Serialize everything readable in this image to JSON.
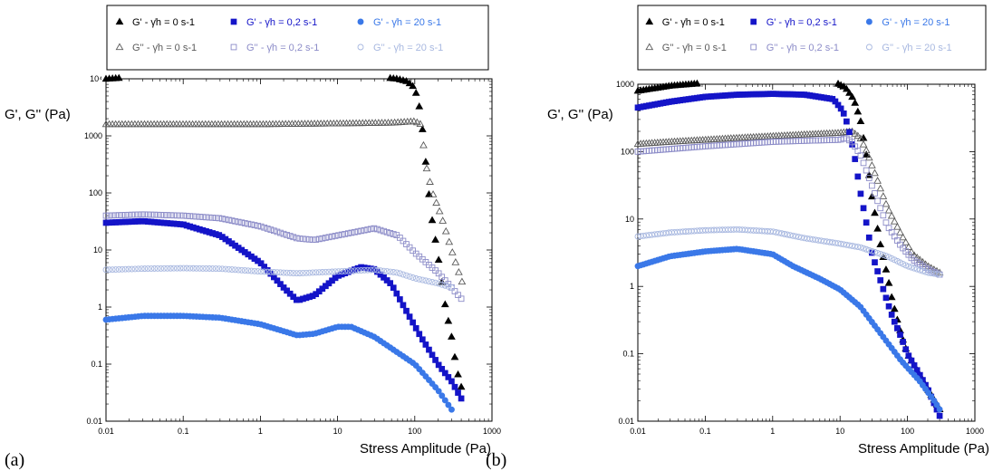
{
  "colors": {
    "black": "#000000",
    "navy": "#1414c8",
    "lightblue": "#3a78e8",
    "open_black": "#5a5a5a",
    "open_navy": "#8c8cc8",
    "open_light": "#a8b8e0"
  },
  "panels": [
    "(a)",
    "(b)"
  ],
  "chart_data": [
    {
      "type": "scatter",
      "panel_label": "(a)",
      "xlabel": "Stress Amplitude (Pa)",
      "ylabel": "G', G'' (Pa)",
      "xscale": "log",
      "yscale": "log",
      "xlim": [
        0.01,
        1000
      ],
      "ylim": [
        0.01,
        10000
      ],
      "xticks": [
        "0.01",
        "0.1",
        "1",
        "10",
        "100",
        "1000"
      ],
      "yticks": [
        "0.01",
        "0.1",
        "1",
        "10",
        "100",
        "1000",
        "10⁴"
      ],
      "grid": false,
      "legend_position": "top",
      "series": [
        {
          "name": "G' - γ̇h = 0 s-1",
          "color": "#000000",
          "marker": "triangle-filled",
          "points": [
            [
              0.01,
              10000
            ],
            [
              0.03,
              11000
            ],
            [
              0.1,
              11500
            ],
            [
              0.3,
              11500
            ],
            [
              1,
              11500
            ],
            [
              3,
              11500
            ],
            [
              10,
              11500
            ],
            [
              30,
              11000
            ],
            [
              60,
              10000
            ],
            [
              80,
              9000
            ],
            [
              100,
              7000
            ],
            [
              120,
              2500
            ],
            [
              160,
              50
            ],
            [
              200,
              8
            ],
            [
              250,
              1
            ],
            [
              300,
              0.3
            ],
            [
              350,
              0.08
            ],
            [
              400,
              0.04
            ]
          ]
        },
        {
          "name": "G'' - γ̇h = 0 s-1",
          "color": "#5a5a5a",
          "marker": "triangle-open",
          "points": [
            [
              0.01,
              1600
            ],
            [
              0.1,
              1600
            ],
            [
              1,
              1600
            ],
            [
              10,
              1650
            ],
            [
              50,
              1700
            ],
            [
              100,
              1800
            ],
            [
              120,
              1600
            ],
            [
              140,
              300
            ],
            [
              170,
              100
            ],
            [
              220,
              40
            ],
            [
              300,
              10
            ],
            [
              400,
              3
            ],
            [
              450,
              2
            ]
          ]
        },
        {
          "name": "G' - γ̇h = 0,2 s-1",
          "color": "#1414c8",
          "marker": "square-filled",
          "points": [
            [
              0.01,
              30
            ],
            [
              0.03,
              32
            ],
            [
              0.1,
              28
            ],
            [
              0.3,
              18
            ],
            [
              1,
              6
            ],
            [
              2,
              2.2
            ],
            [
              3,
              1.3
            ],
            [
              5,
              1.6
            ],
            [
              10,
              3.5
            ],
            [
              20,
              5
            ],
            [
              30,
              4.6
            ],
            [
              50,
              2.5
            ],
            [
              80,
              0.8
            ],
            [
              120,
              0.3
            ],
            [
              200,
              0.1
            ],
            [
              300,
              0.05
            ],
            [
              400,
              0.025
            ]
          ]
        },
        {
          "name": "G'' - γ̇h = 0,2 s-1",
          "color": "#8c8cc8",
          "marker": "square-open",
          "points": [
            [
              0.01,
              40
            ],
            [
              0.03,
              42
            ],
            [
              0.1,
              40
            ],
            [
              0.3,
              36
            ],
            [
              1,
              26
            ],
            [
              3,
              16
            ],
            [
              5,
              15
            ],
            [
              10,
              18
            ],
            [
              30,
              24
            ],
            [
              60,
              18
            ],
            [
              100,
              9
            ],
            [
              200,
              4
            ],
            [
              300,
              2.2
            ],
            [
              400,
              1.4
            ]
          ]
        },
        {
          "name": "G' - γ̇h = 20 s-1",
          "color": "#3a78e8",
          "marker": "circle-filled",
          "points": [
            [
              0.01,
              0.6
            ],
            [
              0.03,
              0.7
            ],
            [
              0.1,
              0.7
            ],
            [
              0.3,
              0.65
            ],
            [
              1,
              0.5
            ],
            [
              3,
              0.32
            ],
            [
              5,
              0.34
            ],
            [
              10,
              0.45
            ],
            [
              15,
              0.45
            ],
            [
              30,
              0.3
            ],
            [
              100,
              0.1
            ],
            [
              200,
              0.035
            ],
            [
              300,
              0.016
            ]
          ]
        },
        {
          "name": "G'' - γ̇h = 20 s-1",
          "color": "#a8b8e0",
          "marker": "circle-open",
          "points": [
            [
              0.01,
              4.5
            ],
            [
              0.03,
              4.7
            ],
            [
              0.1,
              4.8
            ],
            [
              0.3,
              4.7
            ],
            [
              1,
              4.2
            ],
            [
              3,
              3.9
            ],
            [
              10,
              4.2
            ],
            [
              30,
              4.5
            ],
            [
              60,
              4
            ],
            [
              100,
              3.2
            ],
            [
              200,
              2.6
            ],
            [
              300,
              2.2
            ]
          ]
        }
      ]
    },
    {
      "type": "scatter",
      "panel_label": "(b)",
      "xlabel": "Stress Amplitude (Pa)",
      "ylabel": "G', G'' (Pa)",
      "xscale": "log",
      "yscale": "log",
      "xlim": [
        0.01,
        1000
      ],
      "ylim": [
        0.01,
        1000
      ],
      "xticks": [
        "0.01",
        "0.1",
        "1",
        "10",
        "100",
        "1000"
      ],
      "yticks": [
        "0.01",
        "0.1",
        "1",
        "10",
        "100",
        "1000"
      ],
      "grid": false,
      "legend_position": "top",
      "series": [
        {
          "name": "G' - γ̇h = 0 s-1",
          "color": "#000000",
          "marker": "triangle-filled",
          "points": [
            [
              0.01,
              800
            ],
            [
              0.03,
              950
            ],
            [
              0.1,
              1050
            ],
            [
              0.3,
              1150
            ],
            [
              1,
              1200
            ],
            [
              3,
              1200
            ],
            [
              8,
              1100
            ],
            [
              12,
              900
            ],
            [
              16,
              600
            ],
            [
              20,
              300
            ],
            [
              25,
              80
            ],
            [
              30,
              20
            ],
            [
              40,
              4
            ],
            [
              50,
              1.5
            ],
            [
              60,
              0.6
            ],
            [
              80,
              0.2
            ],
            [
              100,
              0.1
            ],
            [
              150,
              0.05
            ],
            [
              200,
              0.03
            ],
            [
              300,
              0.015
            ]
          ]
        },
        {
          "name": "G'' - γ̇h = 0 s-1",
          "color": "#5a5a5a",
          "marker": "triangle-open",
          "points": [
            [
              0.01,
              130
            ],
            [
              0.03,
              140
            ],
            [
              0.1,
              150
            ],
            [
              0.3,
              160
            ],
            [
              1,
              170
            ],
            [
              3,
              180
            ],
            [
              10,
              190
            ],
            [
              15,
              200
            ],
            [
              20,
              160
            ],
            [
              25,
              100
            ],
            [
              35,
              40
            ],
            [
              50,
              15
            ],
            [
              80,
              6
            ],
            [
              120,
              3
            ],
            [
              200,
              2
            ],
            [
              300,
              1.6
            ]
          ]
        },
        {
          "name": "G' - γ̇h = 0,2 s-1",
          "color": "#1414c8",
          "marker": "square-filled",
          "points": [
            [
              0.01,
              450
            ],
            [
              0.03,
              550
            ],
            [
              0.1,
              650
            ],
            [
              0.3,
              700
            ],
            [
              1,
              720
            ],
            [
              3,
              700
            ],
            [
              8,
              600
            ],
            [
              11,
              400
            ],
            [
              13,
              250
            ],
            [
              16,
              100
            ],
            [
              20,
              25
            ],
            [
              25,
              8
            ],
            [
              30,
              3
            ],
            [
              40,
              1.2
            ],
            [
              50,
              0.6
            ],
            [
              60,
              0.35
            ],
            [
              80,
              0.18
            ],
            [
              100,
              0.1
            ],
            [
              150,
              0.05
            ],
            [
              200,
              0.03
            ],
            [
              300,
              0.012
            ]
          ]
        },
        {
          "name": "G'' - γ̇h = 0,2 s-1",
          "color": "#8c8cc8",
          "marker": "square-open",
          "points": [
            [
              0.01,
              100
            ],
            [
              0.1,
              120
            ],
            [
              1,
              140
            ],
            [
              3,
              145
            ],
            [
              10,
              150
            ],
            [
              12,
              160
            ],
            [
              15,
              140
            ],
            [
              20,
              90
            ],
            [
              25,
              50
            ],
            [
              35,
              20
            ],
            [
              50,
              8
            ],
            [
              80,
              4
            ],
            [
              120,
              2.5
            ],
            [
              200,
              1.8
            ],
            [
              300,
              1.5
            ]
          ]
        },
        {
          "name": "G' - γ̇h = 20 s-1",
          "color": "#3a78e8",
          "marker": "circle-filled",
          "points": [
            [
              0.01,
              2
            ],
            [
              0.03,
              2.8
            ],
            [
              0.1,
              3.3
            ],
            [
              0.3,
              3.6
            ],
            [
              1,
              3
            ],
            [
              2,
              2
            ],
            [
              5,
              1.3
            ],
            [
              10,
              0.9
            ],
            [
              20,
              0.5
            ],
            [
              40,
              0.2
            ],
            [
              80,
              0.08
            ],
            [
              150,
              0.04
            ],
            [
              250,
              0.02
            ],
            [
              300,
              0.015
            ]
          ]
        },
        {
          "name": "G'' - γ̇h = 20 s-1",
          "color": "#a8b8e0",
          "marker": "circle-open",
          "points": [
            [
              0.01,
              5.5
            ],
            [
              0.03,
              6.3
            ],
            [
              0.1,
              6.8
            ],
            [
              0.3,
              7
            ],
            [
              1,
              6.5
            ],
            [
              3,
              5.2
            ],
            [
              10,
              4.3
            ],
            [
              20,
              3.8
            ],
            [
              50,
              2.8
            ],
            [
              100,
              2
            ],
            [
              200,
              1.6
            ],
            [
              300,
              1.5
            ]
          ]
        }
      ]
    }
  ]
}
